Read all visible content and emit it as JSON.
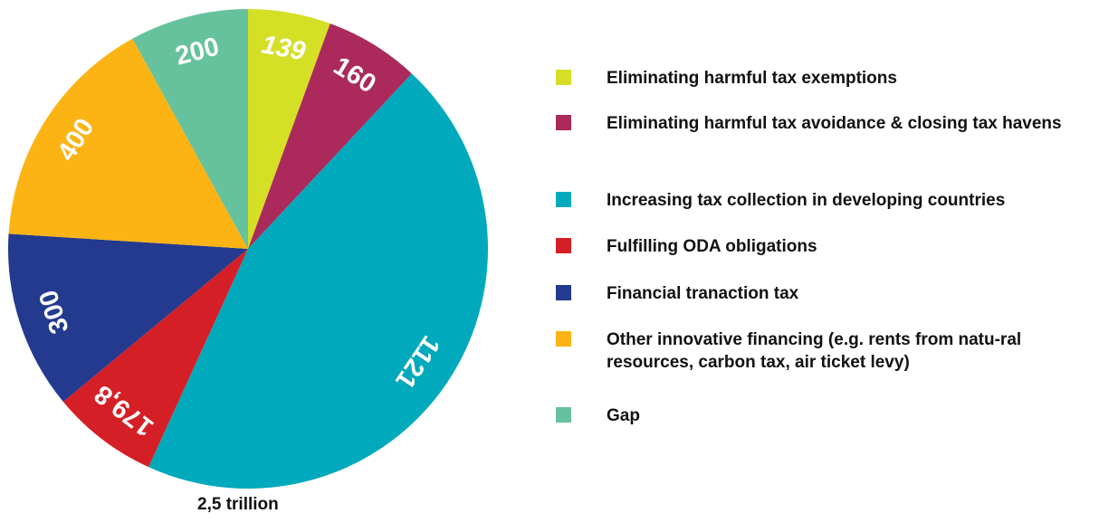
{
  "chart_data": {
    "type": "pie",
    "total_label": "2,5 trillion",
    "slices": [
      {
        "name": "Eliminating harmful tax exemptions",
        "value": 139,
        "label": "139",
        "color": "#d5df26"
      },
      {
        "name": "Eliminating harmful tax avoidance & closing tax havens",
        "value": 160,
        "label": "160",
        "color": "#ab2a5b"
      },
      {
        "name": "Increasing tax collection in developing countries",
        "value": 1121,
        "label": "1121",
        "color": "#00a9bb"
      },
      {
        "name": "Fulfilling ODA obligations",
        "value": 179.8,
        "label": "179,8",
        "color": "#d51f26"
      },
      {
        "name": "Financial tranaction tax",
        "value": 300,
        "label": "300",
        "color": "#233a8e"
      },
      {
        "name": "Other innovative financing (e.g. rents from natu-ral resources, carbon tax, air ticket levy)",
        "value": 400,
        "label": "400",
        "color": "#fbb414"
      },
      {
        "name": "Gap",
        "value": 200,
        "label": "200",
        "color": "#66c29d"
      }
    ],
    "legend": [
      {
        "label": "Eliminating harmful tax exemptions",
        "color": "#d5df26"
      },
      {
        "label": "Eliminating harmful tax avoidance & closing tax havens",
        "color": "#ab2a5b"
      },
      {
        "label": "Increasing tax collection in developing countries",
        "color": "#00a9bb"
      },
      {
        "label": "Fulfilling ODA obligations",
        "color": "#d51f26"
      },
      {
        "label": "Financial tranaction tax",
        "color": "#233a8e"
      },
      {
        "label": "Other innovative financing (e.g. rents from natu-ral resources, carbon tax, air ticket levy)",
        "color": "#fbb414"
      },
      {
        "label": "Gap",
        "color": "#66c29d"
      }
    ],
    "legend_position": "right"
  }
}
